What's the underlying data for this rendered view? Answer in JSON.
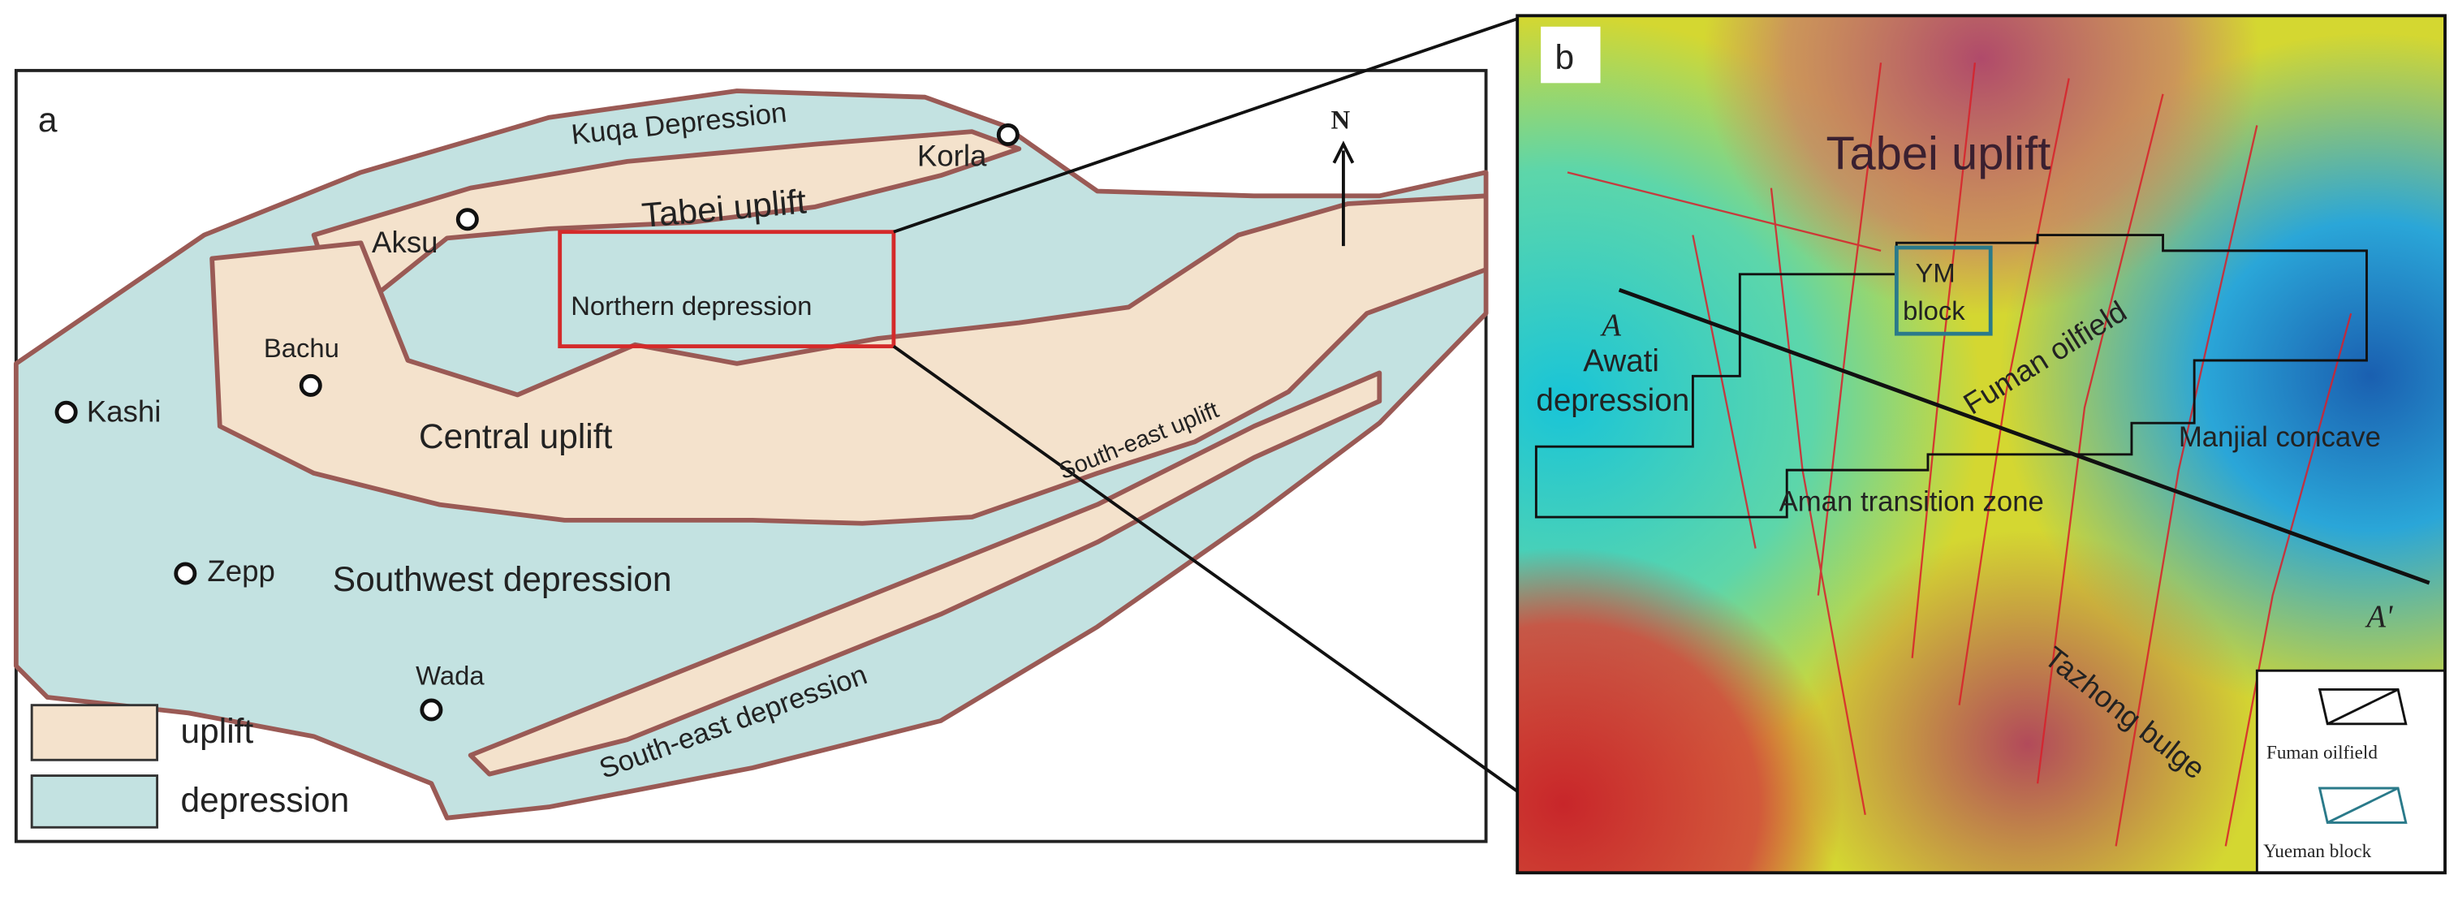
{
  "panel_a": {
    "label": "a",
    "regions": [
      "Kuqa Depression",
      "Tabei uplift",
      "Northern depression",
      "Central uplift",
      "South-east uplift",
      "Southwest depression",
      "South-east depression"
    ],
    "cities": [
      "Korla",
      "Aksu",
      "Bachu",
      "Kashi",
      "Zepp",
      "Wada"
    ],
    "north": "N",
    "legend": [
      "uplift",
      "depression"
    ]
  },
  "panel_b": {
    "label": "b",
    "regions": [
      "Tabei uplift",
      "Fuman oilfield",
      "Awati",
      "depression",
      "Manjial concave",
      "Aman transition zone",
      "Tazhong bulge"
    ],
    "block": [
      "YM",
      "block"
    ],
    "section": [
      "A",
      "A'"
    ],
    "legend": [
      "Fuman oilfield",
      "Yueman block"
    ]
  }
}
